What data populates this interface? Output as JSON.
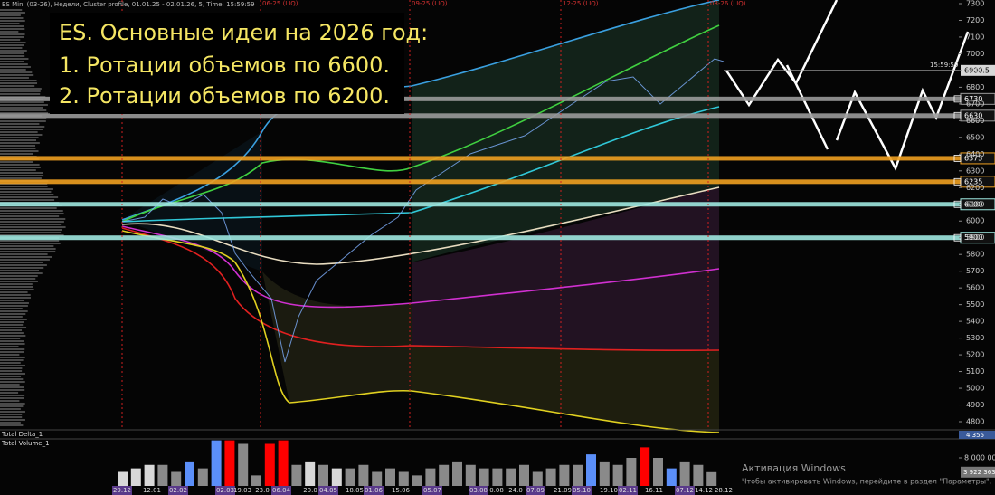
{
  "header": {
    "instrument": "ES Mini (03-26), Недели, Cluster profile, 01.01.25 - 02.01.26, 5, Time: 15:59:59"
  },
  "ideas": {
    "title": "ES. Основные идеи на 2026 год:",
    "items": [
      "1. Ротации объемов по 6600.",
      "2. Ротации объемов по 6200."
    ]
  },
  "rollovers": [
    "06-25 (LIQ)",
    "09-25 (LIQ)",
    "12-25 (LIQ)",
    "03-26 (LIQ)"
  ],
  "price_axis": {
    "ylim": [
      4800,
      7300
    ],
    "yticks": [
      4800,
      4900,
      5000,
      5100,
      5200,
      5300,
      5400,
      5500,
      5600,
      5700,
      5800,
      5900,
      6000,
      6100,
      6200,
      6300,
      6400,
      6500,
      6600,
      6700,
      6800,
      6900,
      7000,
      7100,
      7200,
      7300
    ],
    "levels": [
      {
        "value": 6730,
        "color": "#9a9a9a"
      },
      {
        "value": 6630,
        "color": "#9a9a9a"
      },
      {
        "value": 6375,
        "color": "#f0a020"
      },
      {
        "value": 6235,
        "color": "#f0a020"
      },
      {
        "value": 6100,
        "color": "#9ee8e0"
      },
      {
        "value": 5900,
        "color": "#9ee8e0"
      }
    ],
    "last_price": 6900.5,
    "last_time": "15:59:59"
  },
  "delta_panel": {
    "label": "Total Delta_1",
    "value_label": "4 355"
  },
  "volume_panel": {
    "label": "Total Volume_1",
    "yticks": [
      {
        "value": 8000000,
        "label": "8 000 000"
      }
    ],
    "values": [
      4000000,
      5000000,
      6000000,
      6000000,
      4000000,
      7000000,
      5000000,
      13000000,
      13000000,
      12000000,
      3000000,
      12000000,
      13000000,
      6000000,
      7000000,
      6000000,
      5000000,
      5000000,
      6000000,
      4000000,
      5000000,
      4000000,
      3000000,
      5000000,
      6000000,
      7000000,
      6000000,
      5000000,
      5000000,
      5000000,
      6000000,
      4000000,
      5000000,
      6000000,
      6000000,
      9000000,
      7000000,
      6000000,
      8000000,
      11000000,
      8000000,
      5000000,
      7000000,
      6000000,
      3922363
    ],
    "colors": [
      "#d8d8d8",
      "#d8d8d8",
      "#d8d8d8",
      "#8a8a8a",
      "#8a8a8a",
      "#5b8ff9",
      "#8a8a8a",
      "#5b8ff9",
      "#ff0000",
      "#8a8a8a",
      "#8a8a8a",
      "#ff0000",
      "#ff0000",
      "#8a8a8a",
      "#d8d8d8",
      "#8a8a8a",
      "#d8d8d8",
      "#8a8a8a",
      "#8a8a8a",
      "#8a8a8a",
      "#8a8a8a",
      "#8a8a8a",
      "#8a8a8a",
      "#8a8a8a",
      "#8a8a8a",
      "#8a8a8a",
      "#8a8a8a",
      "#8a8a8a",
      "#8a8a8a",
      "#8a8a8a",
      "#8a8a8a",
      "#8a8a8a",
      "#8a8a8a",
      "#8a8a8a",
      "#8a8a8a",
      "#5b8ff9",
      "#8a8a8a",
      "#8a8a8a",
      "#8a8a8a",
      "#ff0000",
      "#8a8a8a",
      "#5b8ff9",
      "#8a8a8a",
      "#8a8a8a",
      "#8a8a8a"
    ],
    "last_label": "3 922 363"
  },
  "dates": [
    "29.12",
    "12.01",
    "02.02",
    "02.03",
    "19.03",
    "23.0",
    "06.04",
    "20.0",
    "04.05",
    "18.05",
    "01.06",
    "15.06",
    "05.07",
    "03.08",
    "0.08",
    "24.0",
    "07.09",
    "21.09",
    "05.10",
    "19.10",
    "02.11",
    "16.11",
    "07.12",
    "14.12",
    "28.12"
  ],
  "date_highlight": [
    true,
    false,
    true,
    true,
    false,
    false,
    true,
    false,
    true,
    false,
    true,
    false,
    true,
    true,
    false,
    false,
    true,
    false,
    true,
    false,
    true,
    false,
    true,
    false,
    false
  ],
  "watermark": {
    "title": "Активация Windows",
    "text": "Чтобы активировать Windows, перейдите в раздел \"Параметры\"."
  }
}
